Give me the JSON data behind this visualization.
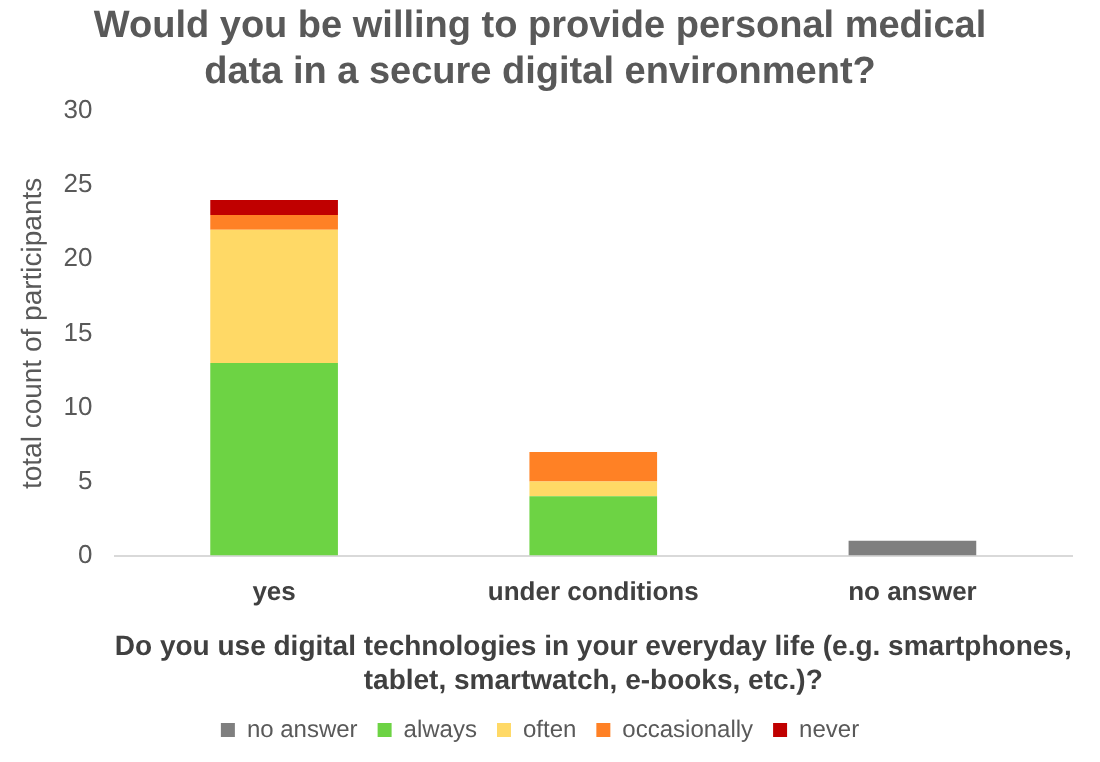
{
  "chart_data": {
    "type": "bar",
    "stacked": true,
    "title": "Would you be willing to provide personal medical data in a secure digital environment?",
    "xlabel": "Do you use digital technologies in your everyday life (e.g. smartphones, tablet, smartwatch, e-books, etc.)?",
    "ylabel": "total count of participants",
    "categories": [
      "yes",
      "under conditions",
      "no answer"
    ],
    "series": [
      {
        "name": "no answer",
        "color": "#7f7f7f",
        "values": [
          0,
          0,
          1
        ]
      },
      {
        "name": "always",
        "color": "#6dd344",
        "values": [
          13,
          4,
          0
        ]
      },
      {
        "name": "often",
        "color": "#ffd966",
        "values": [
          9,
          1,
          0
        ]
      },
      {
        "name": "occasionally",
        "color": "#ff8125",
        "values": [
          1,
          2,
          0
        ]
      },
      {
        "name": "never",
        "color": "#c00000",
        "values": [
          1,
          0,
          0
        ]
      }
    ],
    "ylim": [
      0,
      30
    ],
    "yticks": [
      0,
      5,
      10,
      15,
      20,
      25,
      30
    ],
    "grid": false,
    "legend": "bottom"
  }
}
